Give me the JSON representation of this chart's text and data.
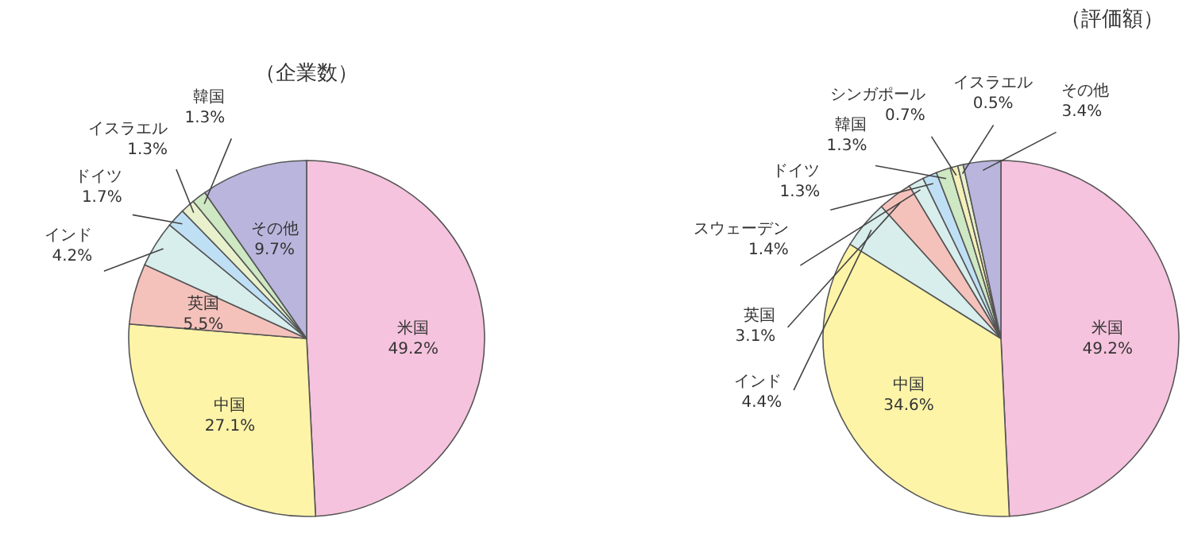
{
  "chart_data": [
    {
      "type": "pie",
      "title": "（企業数）",
      "value_labels": [
        "49.2%",
        "27.1%",
        "5.5%",
        "4.2%",
        "1.7%",
        "1.3%",
        "1.3%",
        "9.7%"
      ],
      "categories": [
        "米国",
        "中国",
        "英国",
        "インド",
        "ドイツ",
        "イスラエル",
        "韓国",
        "その他"
      ],
      "values": [
        49.2,
        27.1,
        5.5,
        4.2,
        1.7,
        1.3,
        1.3,
        9.7
      ],
      "colors": [
        "#f5c3dd",
        "#fdf4a8",
        "#f5c2bb",
        "#d8eeec",
        "#bfe0f4",
        "#e8f1cc",
        "#cde8c3",
        "#b9b5dd"
      ]
    },
    {
      "type": "pie",
      "title": "（評価額）",
      "value_labels": [
        "49.2%",
        "34.6%",
        "4.4%",
        "3.1%",
        "1.4%",
        "1.3%",
        "1.3%",
        "0.7%",
        "0.5%",
        "3.4%"
      ],
      "categories": [
        "米国",
        "中国",
        "インド",
        "英国",
        "スウェーデン",
        "ドイツ",
        "韓国",
        "シンガポール",
        "イスラエル",
        "その他"
      ],
      "values": [
        49.2,
        34.6,
        4.4,
        3.1,
        1.4,
        1.3,
        1.3,
        0.7,
        0.5,
        3.4
      ],
      "colors": [
        "#f5c3dd",
        "#fdf4a8",
        "#d8eeec",
        "#f5c2bb",
        "#d8eeec",
        "#bfe0f4",
        "#cde8c3",
        "#f4f0b8",
        "#e8f1cc",
        "#b9b5dd"
      ]
    }
  ]
}
